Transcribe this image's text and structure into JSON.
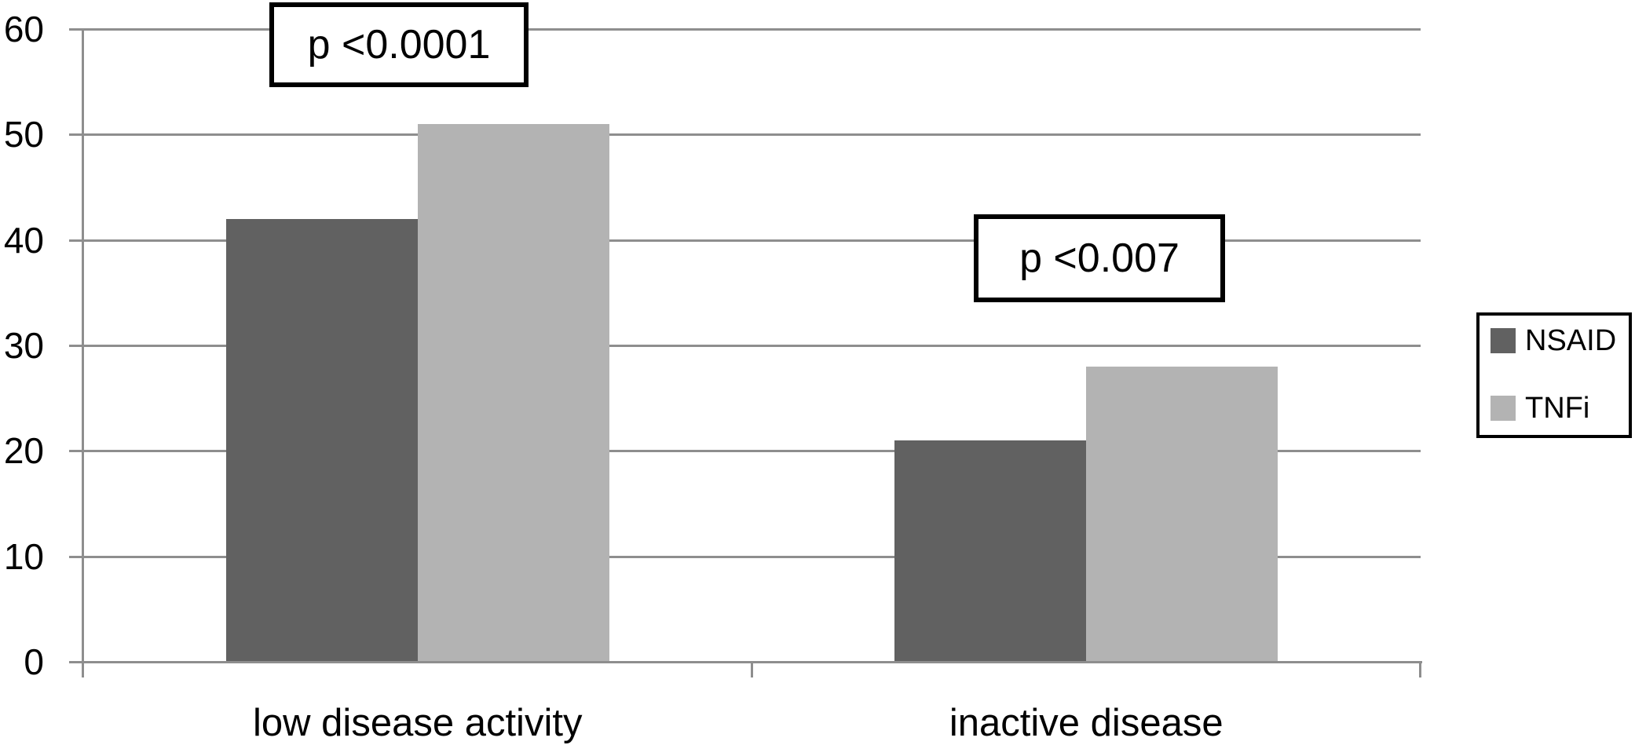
{
  "chart_data": {
    "type": "bar",
    "title": "",
    "categories": [
      "low disease activity",
      "inactive disease"
    ],
    "series": [
      {
        "name": "NSAID",
        "color": "#616161",
        "values": [
          42,
          21
        ]
      },
      {
        "name": "TNFi",
        "color": "#b3b3b3",
        "values": [
          51,
          28
        ]
      }
    ],
    "xlabel": "",
    "ylabel": "",
    "ylim": [
      0,
      60
    ],
    "yticks": [
      0,
      10,
      20,
      30,
      40,
      50,
      60
    ],
    "grid": "horizontal",
    "gridline_color": "#8e8e8e",
    "axis_color": "#8e8e8e",
    "legend_position": "right",
    "annotations": [
      {
        "text": "p <0.0001",
        "category": "low disease activity"
      },
      {
        "text": "p <0.007",
        "category": "inactive disease"
      }
    ]
  }
}
